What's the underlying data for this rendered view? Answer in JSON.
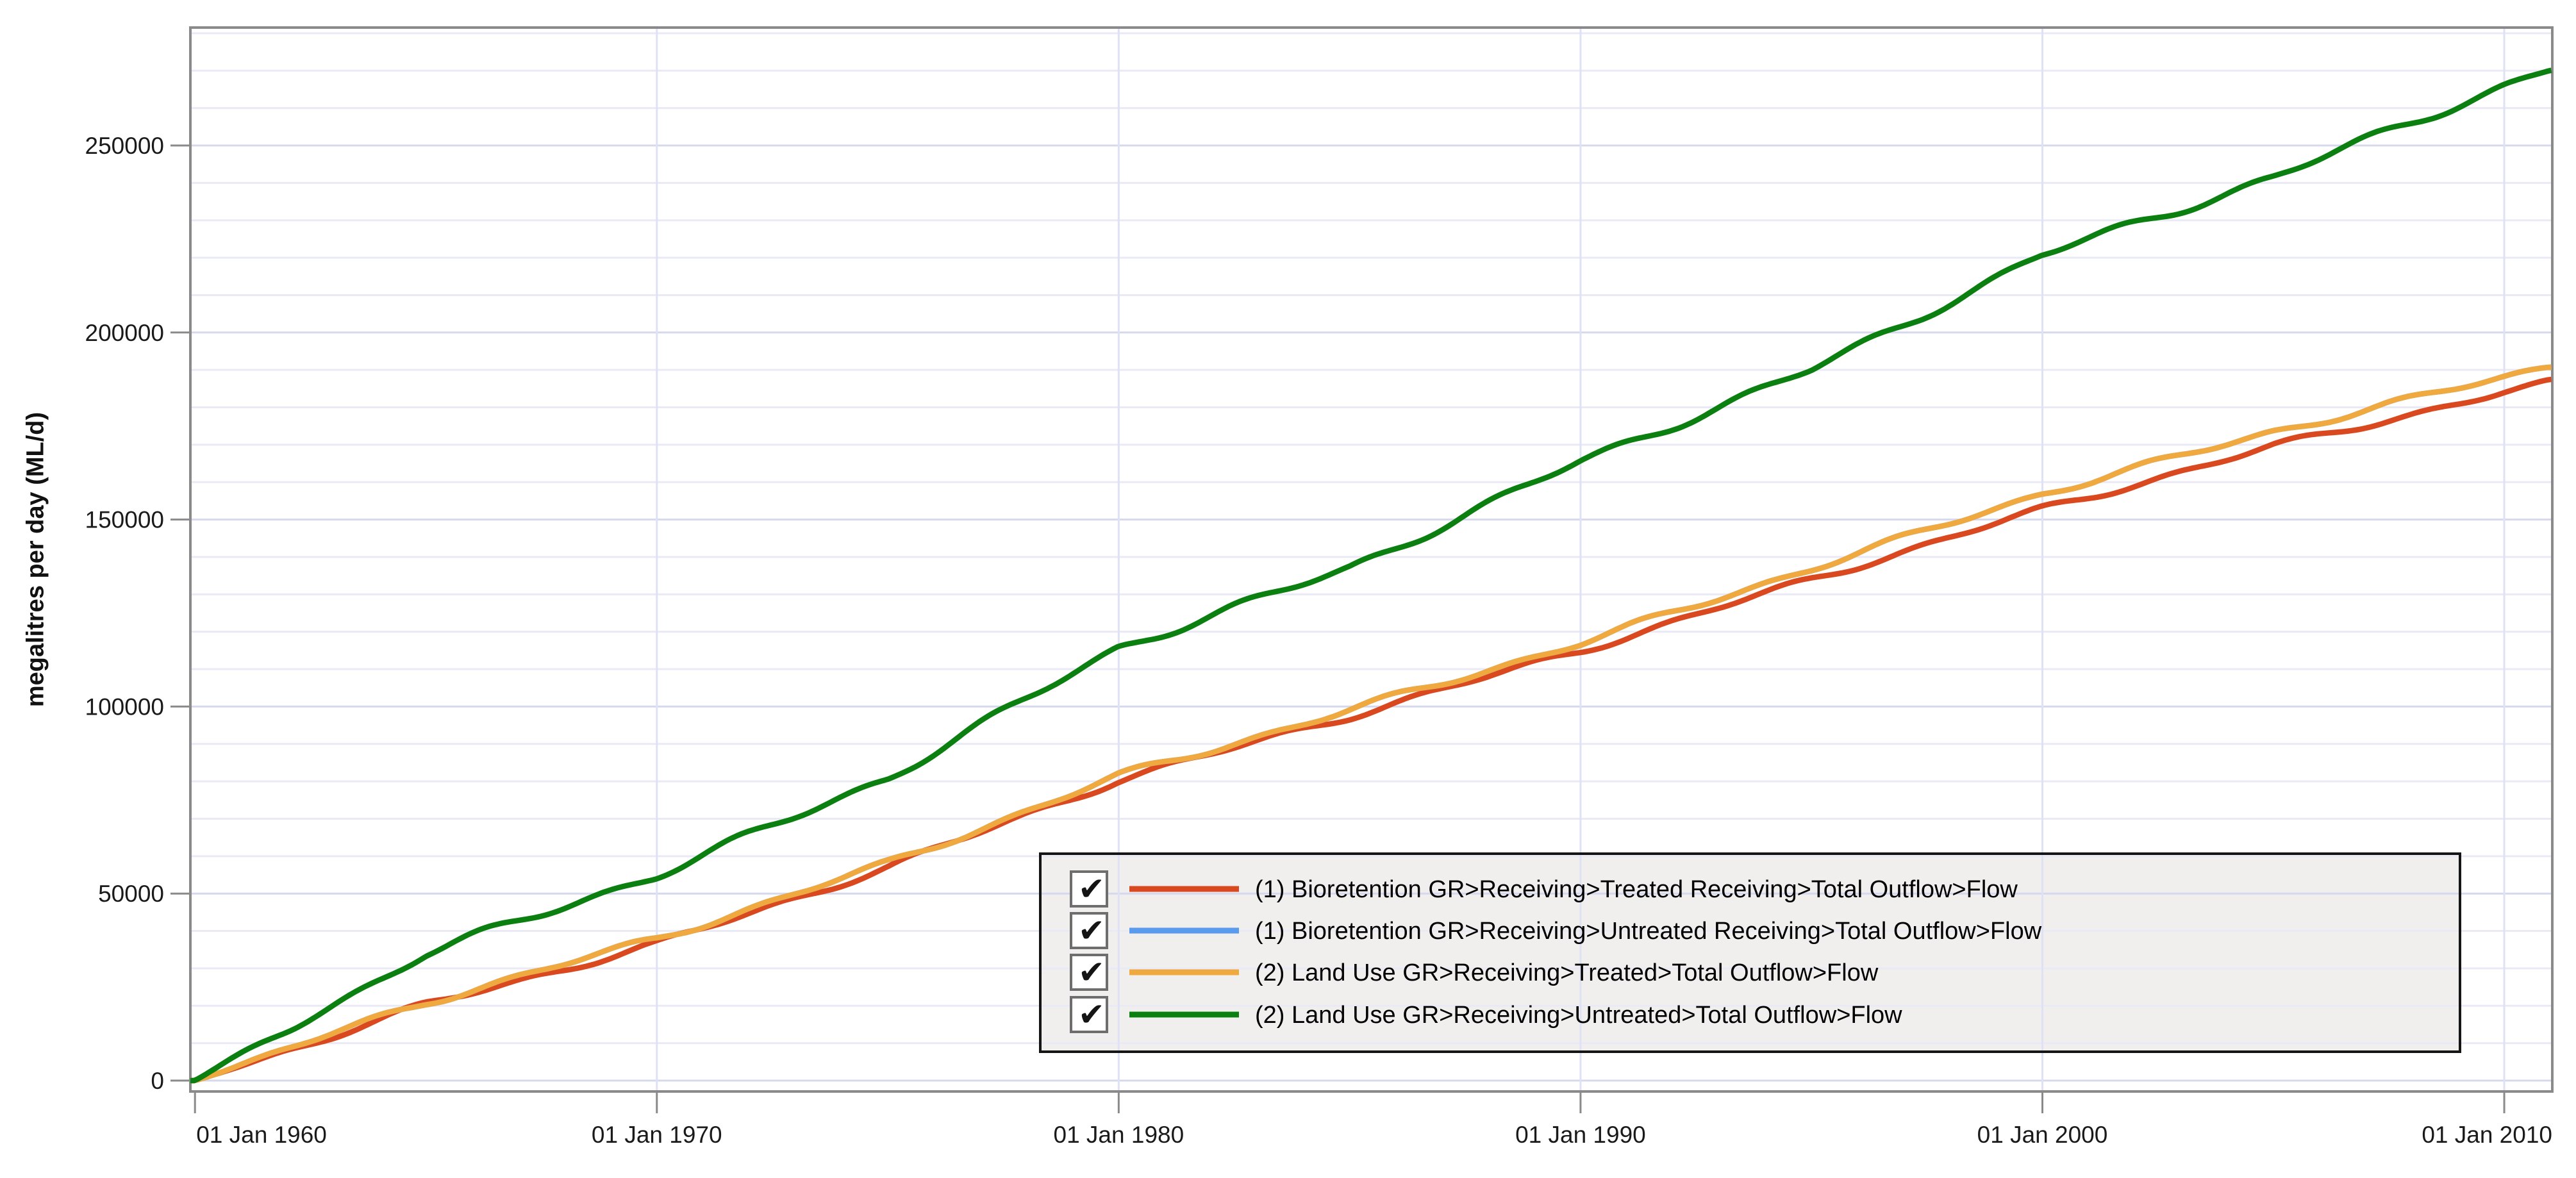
{
  "chart_data": {
    "type": "line",
    "title": "",
    "xlabel": "",
    "ylabel": "megalitres per day (ML/d)",
    "x_tick_labels": [
      "01 Jan 1960",
      "01 Jan 1970",
      "01 Jan 1980",
      "01 Jan 1990",
      "01 Jan 2000",
      "01 Jan 2010"
    ],
    "x_tick_years": [
      1960,
      1970,
      1980,
      1990,
      2000,
      2010
    ],
    "y_tick_labels": [
      "0",
      "50000",
      "100000",
      "150000",
      "200000",
      "250000"
    ],
    "y_tick_values": [
      0,
      50000,
      100000,
      150000,
      200000,
      250000
    ],
    "y_minor_step": 10000,
    "y_minor_max": 280000,
    "ylim": [
      -2900,
      281500
    ],
    "xlim_years": [
      1959.9,
      2011.04
    ],
    "grid": "horizontal minor+major, vertical at decade ticks, drawn over legend background",
    "legend_position": "inside plot, bottom right",
    "checkbox_glyph": "✔",
    "x_anchor_years": [
      1960,
      1965,
      1970,
      1975,
      1980,
      1985,
      1990,
      1995,
      2000,
      2005,
      2010,
      2011
    ],
    "series": [
      {
        "name": "(1) Bioretention GR>Receiving>Treated Receiving>Total Outflow>Flow",
        "color": "#d9481e",
        "checked": true,
        "values": [
          0,
          20200,
          36500,
          57000,
          80400,
          97500,
          115000,
          134000,
          152700,
          169500,
          184000,
          186400
        ]
      },
      {
        "name": "(1) Bioretention GR>Receiving>Untreated Receiving>Total Outflow>Flow",
        "color": "#5b9bed",
        "checked": true,
        "values": [
          0,
          21000,
          37900,
          58000,
          81400,
          99000,
          117000,
          137000,
          157000,
          173500,
          188000,
          191000
        ]
      },
      {
        "name": "(2) Land Use GR>Receiving>Treated>Total Outflow>Flow",
        "color": "#efa93f",
        "checked": true,
        "values": [
          0,
          21000,
          37900,
          58000,
          81400,
          99000,
          117000,
          137000,
          157000,
          173500,
          188000,
          191000
        ]
      },
      {
        "name": "(2) Land Use GR>Receiving>Untreated>Total Outflow>Flow",
        "color": "#0b7f10",
        "checked": true,
        "values": [
          0,
          34000,
          55000,
          81000,
          115800,
          137000,
          165500,
          190000,
          220700,
          241500,
          266000,
          270500
        ]
      }
    ]
  }
}
